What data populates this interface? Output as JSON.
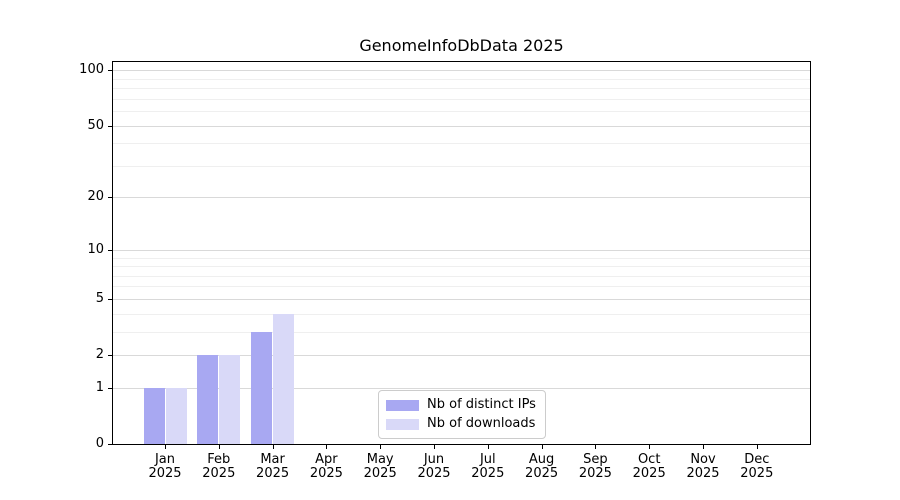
{
  "figure": {
    "background": "#ffffff"
  },
  "chart_data": {
    "type": "bar",
    "title": "GenomeInfoDbData 2025",
    "xlabel": "",
    "ylabel": "",
    "categories": [
      "Jan",
      "Feb",
      "Mar",
      "Apr",
      "May",
      "Jun",
      "Jul",
      "Aug",
      "Sep",
      "Oct",
      "Nov",
      "Dec"
    ],
    "year": "2025",
    "series": [
      {
        "name": "Nb of distinct IPs",
        "color": "#a8a8f2",
        "values": [
          1,
          2,
          3,
          0,
          0,
          0,
          0,
          0,
          0,
          0,
          0,
          0
        ]
      },
      {
        "name": "Nb of downloads",
        "color": "#d9d9f8",
        "values": [
          1,
          2,
          4,
          0,
          0,
          0,
          0,
          0,
          0,
          0,
          0,
          0
        ]
      }
    ],
    "y_axis": {
      "scale": "log1p",
      "tick_values": [
        100,
        50,
        20,
        10,
        5,
        2,
        1,
        0
      ],
      "tick_labels": [
        "100",
        "50",
        "20",
        "10",
        "5",
        "2",
        "1",
        "0"
      ],
      "major_gridlines": [
        1,
        2,
        5,
        10,
        20,
        50,
        100
      ],
      "minor_gridlines": [
        3,
        4,
        6,
        7,
        8,
        9,
        30,
        40,
        60,
        70,
        80,
        90
      ],
      "range_top": 110
    },
    "legend": {
      "position": "lower center",
      "entries": [
        "Nb of distinct IPs",
        "Nb of downloads"
      ]
    },
    "grid": "on"
  },
  "colors": {
    "distinct_ips_bar": "#a8a8f2",
    "downloads_bar": "#d9d9f8",
    "grid_major": "#d9d9d9",
    "grid_minor": "#efefef",
    "axis": "#000000",
    "text": "#000000",
    "legend_border": "#cccccc"
  }
}
